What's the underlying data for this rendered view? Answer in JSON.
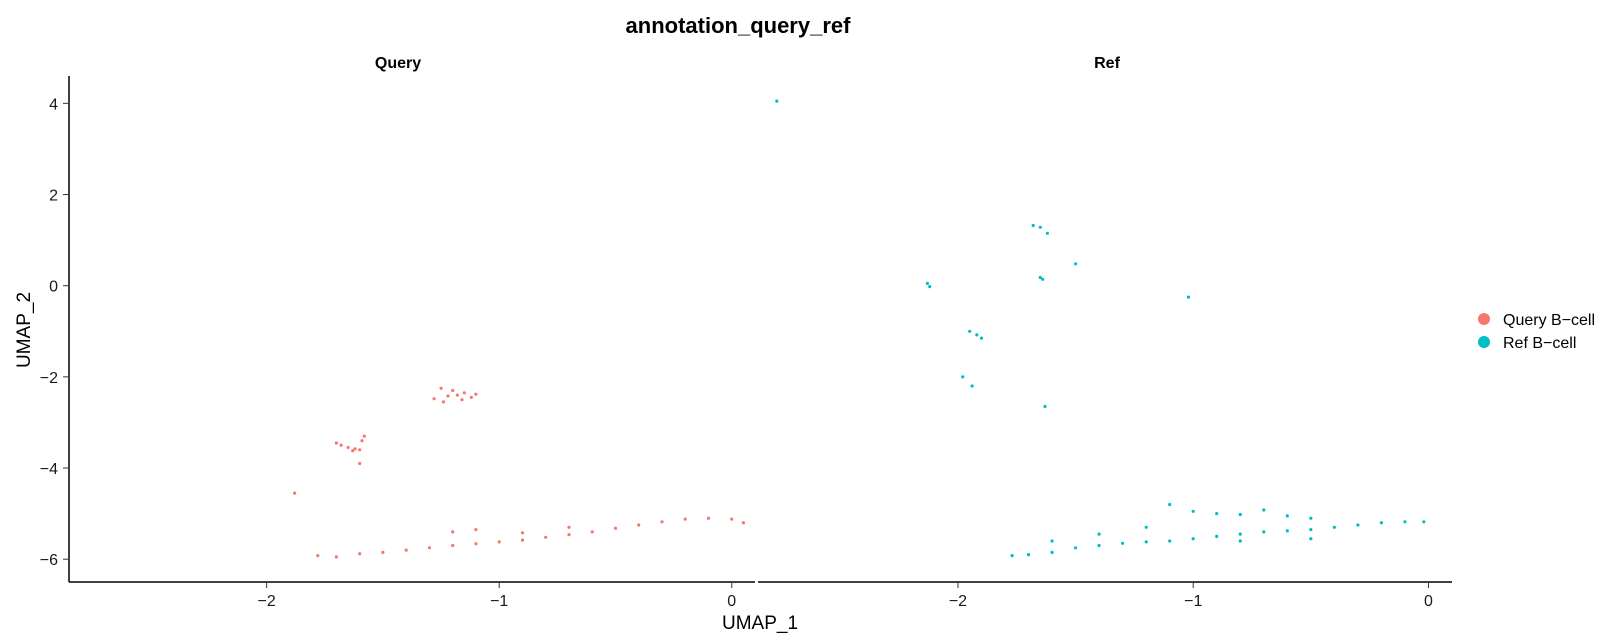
{
  "chart_data": {
    "type": "scatter",
    "title": "annotation_query_ref",
    "xlabel": "UMAP_1",
    "ylabel": "UMAP_2",
    "xlim": [
      -2.85,
      0.1
    ],
    "ylim": [
      -6.5,
      4.6
    ],
    "x_ticks": [
      -2,
      -1,
      0
    ],
    "x_tick_labels": [
      "−2",
      "−1",
      "0"
    ],
    "y_ticks": [
      4,
      2,
      0,
      -2,
      -4,
      -6
    ],
    "y_tick_labels": [
      "4",
      "2",
      "0",
      "−2",
      "−4",
      "−6"
    ],
    "grid": false,
    "legend_position": "right",
    "legend": [
      {
        "label": "Query B−cell",
        "color": "#F8766D"
      },
      {
        "label": "Ref B−cell",
        "color": "#00BFC4"
      }
    ],
    "facets": [
      {
        "label": "Query",
        "color": "#F8766D",
        "points": [
          [
            -1.88,
            -4.55
          ],
          [
            -1.6,
            -3.9
          ],
          [
            -1.58,
            -3.3
          ],
          [
            -1.59,
            -3.4
          ],
          [
            -1.62,
            -3.58
          ],
          [
            -1.65,
            -3.55
          ],
          [
            -1.68,
            -3.5
          ],
          [
            -1.6,
            -3.6
          ],
          [
            -1.63,
            -3.62
          ],
          [
            -1.7,
            -3.45
          ],
          [
            -1.25,
            -2.25
          ],
          [
            -1.2,
            -2.3
          ],
          [
            -1.15,
            -2.35
          ],
          [
            -1.18,
            -2.4
          ],
          [
            -1.22,
            -2.42
          ],
          [
            -1.12,
            -2.45
          ],
          [
            -1.16,
            -2.5
          ],
          [
            -1.24,
            -2.55
          ],
          [
            -1.1,
            -2.38
          ],
          [
            -1.28,
            -2.48
          ],
          [
            -1.78,
            -5.92
          ],
          [
            -1.7,
            -5.95
          ],
          [
            -1.6,
            -5.88
          ],
          [
            -1.5,
            -5.85
          ],
          [
            -1.4,
            -5.8
          ],
          [
            -1.3,
            -5.75
          ],
          [
            -1.2,
            -5.7
          ],
          [
            -1.1,
            -5.66
          ],
          [
            -1.0,
            -5.62
          ],
          [
            -0.9,
            -5.58
          ],
          [
            -0.8,
            -5.52
          ],
          [
            -0.7,
            -5.46
          ],
          [
            -0.6,
            -5.4
          ],
          [
            -0.5,
            -5.32
          ],
          [
            -0.4,
            -5.25
          ],
          [
            -0.3,
            -5.18
          ],
          [
            -0.2,
            -5.12
          ],
          [
            -0.1,
            -5.1
          ],
          [
            0.0,
            -5.12
          ],
          [
            0.05,
            -5.2
          ],
          [
            -1.2,
            -5.4
          ],
          [
            -1.1,
            -5.35
          ],
          [
            -0.9,
            -5.42
          ],
          [
            -0.7,
            -5.3
          ]
        ]
      },
      {
        "label": "Ref",
        "color": "#00BFC4",
        "points": [
          [
            -2.77,
            4.05
          ],
          [
            -1.68,
            1.32
          ],
          [
            -1.65,
            1.28
          ],
          [
            -1.62,
            1.15
          ],
          [
            -1.5,
            0.48
          ],
          [
            -1.65,
            0.18
          ],
          [
            -1.64,
            0.14
          ],
          [
            -2.13,
            0.05
          ],
          [
            -2.12,
            -0.02
          ],
          [
            -1.02,
            -0.25
          ],
          [
            -1.95,
            -1.0
          ],
          [
            -1.92,
            -1.08
          ],
          [
            -1.9,
            -1.15
          ],
          [
            -1.98,
            -2.0
          ],
          [
            -1.94,
            -2.2
          ],
          [
            -1.63,
            -2.65
          ],
          [
            -1.77,
            -5.92
          ],
          [
            -1.7,
            -5.9
          ],
          [
            -1.6,
            -5.85
          ],
          [
            -1.5,
            -5.75
          ],
          [
            -1.4,
            -5.7
          ],
          [
            -1.3,
            -5.65
          ],
          [
            -1.2,
            -5.62
          ],
          [
            -1.1,
            -5.6
          ],
          [
            -1.0,
            -5.55
          ],
          [
            -0.9,
            -5.5
          ],
          [
            -0.8,
            -5.45
          ],
          [
            -0.7,
            -5.4
          ],
          [
            -0.6,
            -5.38
          ],
          [
            -0.5,
            -5.35
          ],
          [
            -0.4,
            -5.3
          ],
          [
            -0.3,
            -5.25
          ],
          [
            -0.2,
            -5.2
          ],
          [
            -0.1,
            -5.18
          ],
          [
            -0.02,
            -5.18
          ],
          [
            -1.1,
            -4.8
          ],
          [
            -1.0,
            -4.95
          ],
          [
            -0.9,
            -5.0
          ],
          [
            -0.8,
            -5.02
          ],
          [
            -0.7,
            -4.92
          ],
          [
            -0.6,
            -5.05
          ],
          [
            -0.5,
            -5.1
          ],
          [
            -1.6,
            -5.6
          ],
          [
            -1.4,
            -5.45
          ],
          [
            -1.2,
            -5.3
          ],
          [
            -0.8,
            -5.6
          ],
          [
            -0.5,
            -5.55
          ]
        ]
      }
    ]
  }
}
